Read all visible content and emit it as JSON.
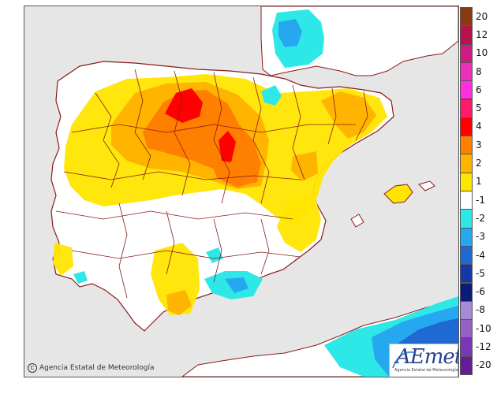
{
  "map": {
    "legend": {
      "labels": [
        "20",
        "12",
        "10",
        "8",
        "6",
        "5",
        "4",
        "3",
        "2",
        "1",
        "-1",
        "-2",
        "-3",
        "-4",
        "-5",
        "-6",
        "-8",
        "-10",
        "-12",
        "-20"
      ],
      "colors": [
        "#8b3a0f",
        "#b5124f",
        "#d11a82",
        "#ee2fbe",
        "#ff2fe0",
        "#ff1a6a",
        "#ff0000",
        "#ff7f00",
        "#ffb400",
        "#ffe500",
        "#ffffff",
        "#2ee8e8",
        "#26a8f0",
        "#1e6ad2",
        "#1438a8",
        "#0a1c78",
        "#a58ad8",
        "#9560c8",
        "#7b36b8",
        "#651c98"
      ]
    },
    "colors": {
      "land": "#ffffff",
      "sea": "#e6e6e6",
      "border": "#8b1a1a",
      "anomaly_plus_1": "#ffe500",
      "anomaly_plus_2": "#ffb400",
      "anomaly_plus_3": "#ff7f00",
      "anomaly_plus_4": "#ff0000",
      "anomaly_minus_1": "#2ee8e8",
      "anomaly_minus_2": "#26a8f0",
      "anomaly_minus_3": "#1e6ad2"
    },
    "copyright": {
      "symbol": "C",
      "text": "Agencia Estatal de Meteorología"
    },
    "logo": {
      "wordmark": "AEmet",
      "subtitle": "Agencia Estatal de Meteorología"
    }
  }
}
